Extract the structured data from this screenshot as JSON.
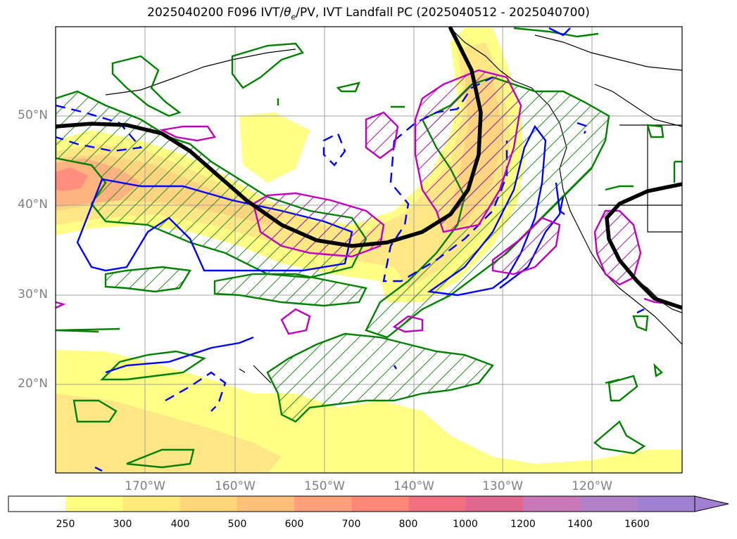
{
  "title_main": "2025040200 F096 IVT/",
  "title_theta": "θ",
  "title_sub": "e",
  "title_rest": "/PV, IVT Landfall PC (2025040512 - 2025040700)",
  "lat_labels": [
    "50°N",
    "40°N",
    "30°N",
    "20°N"
  ],
  "lon_labels": [
    "170°W",
    "160°W",
    "150°W",
    "140°W",
    "130°W",
    "120°W"
  ],
  "colorbar": {
    "ticks": [
      "250",
      "300",
      "400",
      "500",
      "600",
      "700",
      "800",
      "1000",
      "1200",
      "1400",
      "1600"
    ],
    "colors": [
      "#ffffff",
      "#ffff80",
      "#ffeb7a",
      "#ffd77a",
      "#ffc07a",
      "#ffa07a",
      "#ff8878",
      "#f07080",
      "#e06890",
      "#c878b8",
      "#b080c8",
      "#a080d0"
    ]
  },
  "colors": {
    "ivt_jet": "#000000",
    "pv_contour": "#0000ff",
    "theta_e_contour": "#008000",
    "landfall_pc": "#c000c0",
    "coastline": "#000000",
    "grid": "#a0a0a0"
  }
}
